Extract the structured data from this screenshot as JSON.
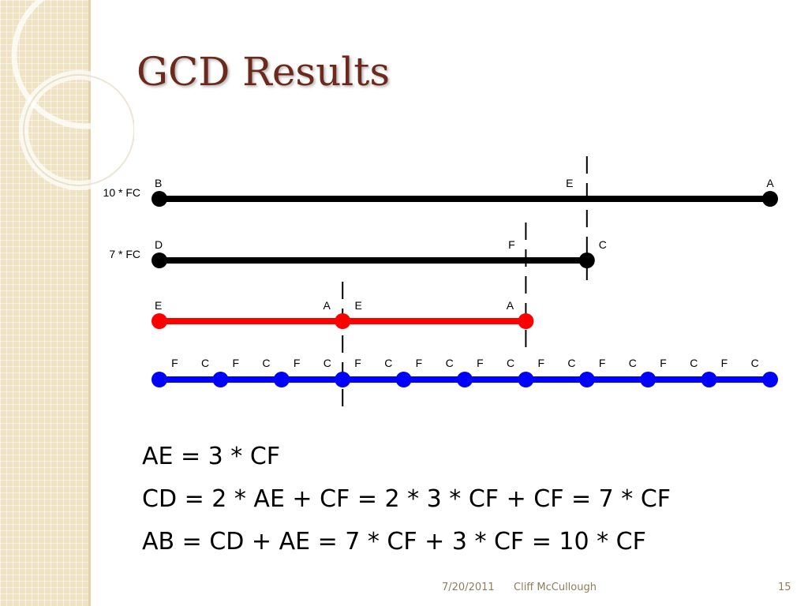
{
  "slide": {
    "title": "GCD Results",
    "equations": [
      "AE = 3 * CF",
      "CD = 2 * AE + CF = 2 * 3 * CF + CF = 7 * CF",
      "AB = CD + AE = 7 * CF + 3 * CF = 10 * CF"
    ],
    "footer": {
      "date": "7/20/2011",
      "author": "Cliff McCullough",
      "page": "15"
    }
  },
  "diagram": {
    "units": "CF",
    "segments": [
      {
        "id": "ab",
        "row_label": "10 * FC",
        "color": "#000000",
        "start": 0,
        "end": 10,
        "points": [
          {
            "label": "B",
            "pos": 0,
            "dot": true
          },
          {
            "label": "E",
            "pos": 7,
            "dot": false
          },
          {
            "label": "A",
            "pos": 10,
            "dot": true
          }
        ]
      },
      {
        "id": "cd",
        "row_label": "7 * FC",
        "color": "#000000",
        "start": 0,
        "end": 7,
        "points": [
          {
            "label": "D",
            "pos": 0,
            "dot": true
          },
          {
            "label": "F",
            "pos": 6,
            "dot": false
          },
          {
            "label": "C",
            "pos": 7,
            "dot": true
          }
        ]
      },
      {
        "id": "ae",
        "row_label": "",
        "color": "#ff0000",
        "start": 0,
        "end": 6,
        "points": [
          {
            "label": "E",
            "pos": 0,
            "dot": true
          },
          {
            "label": "A",
            "pos": 3,
            "dot": true
          },
          {
            "label": "E",
            "pos": 3,
            "dot": false
          },
          {
            "label": "A",
            "pos": 6,
            "dot": true
          }
        ]
      },
      {
        "id": "cf",
        "row_label": "",
        "color": "#0000ff",
        "start": 0,
        "end": 10,
        "points": [
          {
            "label": "",
            "pos": 0,
            "dot": true
          },
          {
            "label": "F",
            "pos": 0.25,
            "dot": false
          },
          {
            "label": "C",
            "pos": 0.75,
            "dot": false
          },
          {
            "label": "",
            "pos": 1,
            "dot": true
          },
          {
            "label": "F",
            "pos": 1.25,
            "dot": false
          },
          {
            "label": "C",
            "pos": 1.75,
            "dot": false
          },
          {
            "label": "",
            "pos": 2,
            "dot": true
          },
          {
            "label": "F",
            "pos": 2.25,
            "dot": false
          },
          {
            "label": "C",
            "pos": 2.75,
            "dot": false
          },
          {
            "label": "",
            "pos": 3,
            "dot": true
          },
          {
            "label": "F",
            "pos": 3.25,
            "dot": false
          },
          {
            "label": "C",
            "pos": 3.75,
            "dot": false
          },
          {
            "label": "",
            "pos": 4,
            "dot": true
          },
          {
            "label": "F",
            "pos": 4.25,
            "dot": false
          },
          {
            "label": "C",
            "pos": 4.75,
            "dot": false
          },
          {
            "label": "",
            "pos": 5,
            "dot": true
          },
          {
            "label": "F",
            "pos": 5.25,
            "dot": false
          },
          {
            "label": "C",
            "pos": 5.75,
            "dot": false
          },
          {
            "label": "",
            "pos": 6,
            "dot": true
          },
          {
            "label": "F",
            "pos": 6.25,
            "dot": false
          },
          {
            "label": "C",
            "pos": 6.75,
            "dot": false
          },
          {
            "label": "",
            "pos": 7,
            "dot": true
          },
          {
            "label": "F",
            "pos": 7.25,
            "dot": false
          },
          {
            "label": "C",
            "pos": 7.75,
            "dot": false
          },
          {
            "label": "",
            "pos": 8,
            "dot": true
          },
          {
            "label": "F",
            "pos": 8.25,
            "dot": false
          },
          {
            "label": "C",
            "pos": 8.75,
            "dot": false
          },
          {
            "label": "",
            "pos": 9,
            "dot": true
          },
          {
            "label": "F",
            "pos": 9.25,
            "dot": false
          },
          {
            "label": "C",
            "pos": 9.75,
            "dot": false
          },
          {
            "label": "",
            "pos": 10,
            "dot": true
          }
        ]
      }
    ],
    "guides": [
      {
        "id": "e-guide",
        "pos": 7
      },
      {
        "id": "f-guide",
        "pos": 6
      },
      {
        "id": "a-guide",
        "pos": 3
      }
    ]
  }
}
